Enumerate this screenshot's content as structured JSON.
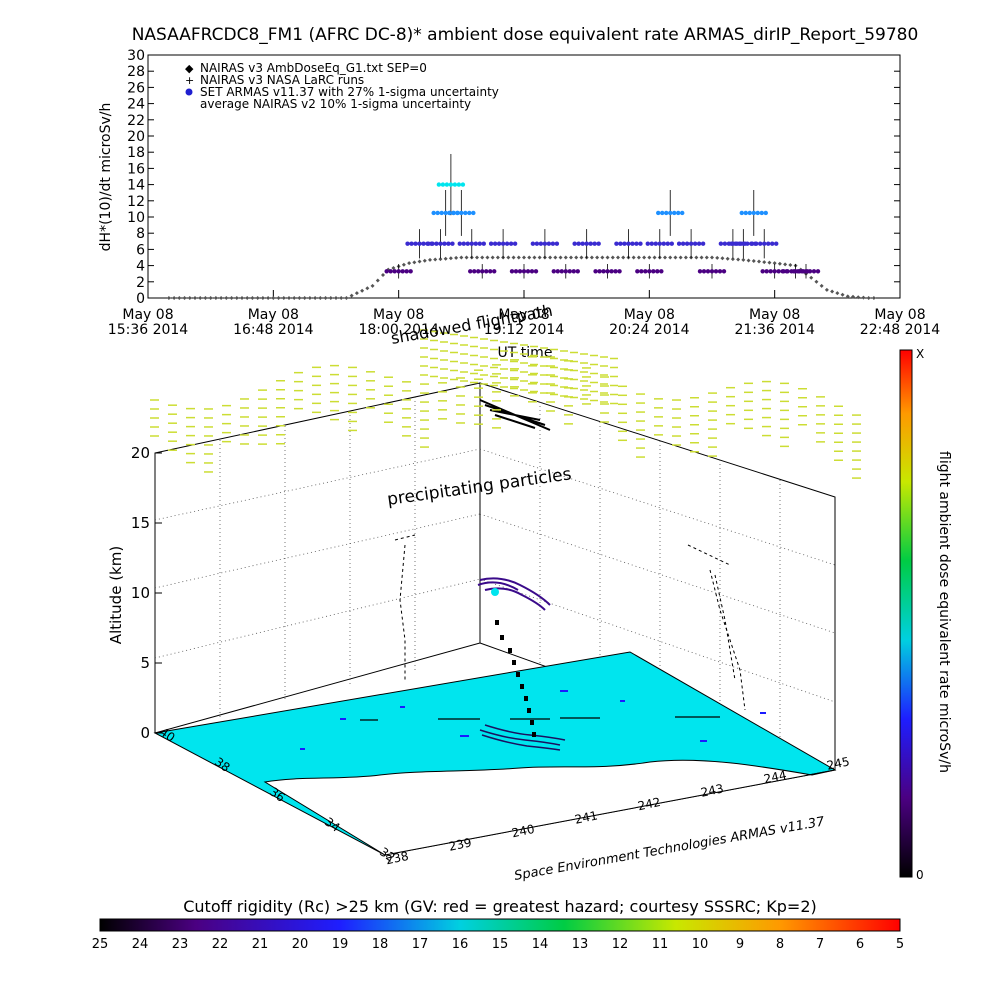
{
  "chart_data": [
    {
      "type": "scatter",
      "title": "NASAAFRCDC8_FM1 (AFRC DC-8)* ambient dose equivalent rate ARMAS_dirIP_Report_59780",
      "ylabel": "dH*(10)/dt microSv/h",
      "xlabel": "UT time",
      "ylim": [
        0,
        30
      ],
      "y_ticks": [
        "0",
        "2",
        "4",
        "6",
        "8",
        "10",
        "12",
        "14",
        "16",
        "18",
        "20",
        "22",
        "24",
        "26",
        "28",
        "30"
      ],
      "x_ticks": [
        {
          "l1": "May 08",
          "l2": "15:36 2014"
        },
        {
          "l1": "May 08",
          "l2": "16:48 2014"
        },
        {
          "l1": "May 08",
          "l2": "18:00 2014"
        },
        {
          "l1": "May 08",
          "l2": "19:12 2014"
        },
        {
          "l1": "May 08",
          "l2": "20:24 2014"
        },
        {
          "l1": "May 08",
          "l2": "21:36 2014"
        },
        {
          "l1": "May 08",
          "l2": "22:48 2014"
        }
      ],
      "legend": [
        {
          "symbol": "diamond",
          "label": "NAIRAS v3 AmbDoseEq_G1.txt SEP=0"
        },
        {
          "symbol": "plus",
          "label": "NAIRAS v3 NASA LaRC runs"
        },
        {
          "symbol": "dot",
          "label": "SET ARMAS v11.37 with 27% 1-sigma uncertainty"
        },
        {
          "symbol": "none",
          "label": "average NAIRAS v2 10% 1-sigma uncertainty"
        }
      ],
      "legend_position": "top-left",
      "series": [
        {
          "name": "NAIRAS v3 AmbDoseEq_G1.txt SEP=0",
          "x_hours": [
            15.8,
            16.0,
            16.3,
            16.6,
            16.9,
            17.2,
            17.5,
            17.75,
            17.9,
            18.1,
            18.3,
            18.6,
            18.9,
            19.2,
            19.5,
            19.8,
            20.1,
            20.4,
            20.7,
            21.0,
            21.3,
            21.6,
            21.8,
            21.95,
            22.1,
            22.3,
            22.5,
            22.6
          ],
          "values": [
            0,
            0,
            0,
            0,
            0,
            0,
            0,
            1.5,
            3.5,
            4.3,
            4.7,
            5.0,
            5.0,
            5.0,
            5.0,
            5.0,
            5.0,
            5.0,
            5.0,
            5.0,
            4.7,
            4.3,
            4.0,
            2.5,
            1.0,
            0.2,
            0,
            0
          ]
        },
        {
          "name": "SET ARMAS v11.37 with 27% 1-sigma uncertainty",
          "x_hours": [
            18.0,
            18.2,
            18.4,
            18.45,
            18.5,
            18.6,
            18.7,
            18.8,
            19.0,
            19.2,
            19.4,
            19.6,
            19.8,
            20.0,
            20.2,
            20.4,
            20.5,
            20.6,
            20.8,
            21.0,
            21.2,
            21.3,
            21.4,
            21.5,
            21.6,
            21.8,
            21.9
          ],
          "values": [
            3.3,
            6.7,
            6.7,
            10.5,
            14.0,
            10.5,
            6.7,
            3.3,
            6.7,
            3.3,
            6.7,
            3.3,
            6.7,
            3.3,
            6.7,
            3.3,
            6.7,
            10.5,
            6.7,
            3.3,
            6.7,
            6.7,
            10.5,
            6.7,
            3.3,
            3.3,
            3.3
          ]
        }
      ],
      "colors": {
        "diamond": "#555555",
        "armas_low": "#4b0082",
        "armas_mid": "#3a2bd0",
        "armas_high": "#1e90ff",
        "armas_peak": "#00e5ee"
      }
    },
    {
      "type": "3d-trajectory",
      "annotations": [
        "shadowed flightpath",
        "precipitating particles",
        "Space Environment Technologies ARMAS v11.37"
      ],
      "zlabel": "Altitude (km)",
      "z_ticks": [
        "0",
        "5",
        "10",
        "15",
        "20"
      ],
      "lat_ticks": [
        "40",
        "38",
        "36",
        "34",
        "32"
      ],
      "lon_ticks": [
        "238",
        "239",
        "240",
        "241",
        "242",
        "243",
        "244",
        "245"
      ],
      "colorbar": {
        "label": "flight ambient dose equivalent rate microSv/h",
        "top": "X",
        "bottom": "0"
      },
      "colors": {
        "ground": "#00e5ee",
        "particles": "#ccdd33",
        "land": "#ffffff"
      }
    },
    {
      "type": "colorbar",
      "label": "Cutoff rigidity (Rc) >25 km (GV: red = greatest hazard; courtesy SSSRC; Kp=2)",
      "ticks": [
        "25",
        "24",
        "23",
        "22",
        "21",
        "20",
        "19",
        "18",
        "17",
        "16",
        "15",
        "14",
        "13",
        "12",
        "11",
        "10",
        "9",
        "8",
        "7",
        "6",
        "5"
      ]
    }
  ]
}
